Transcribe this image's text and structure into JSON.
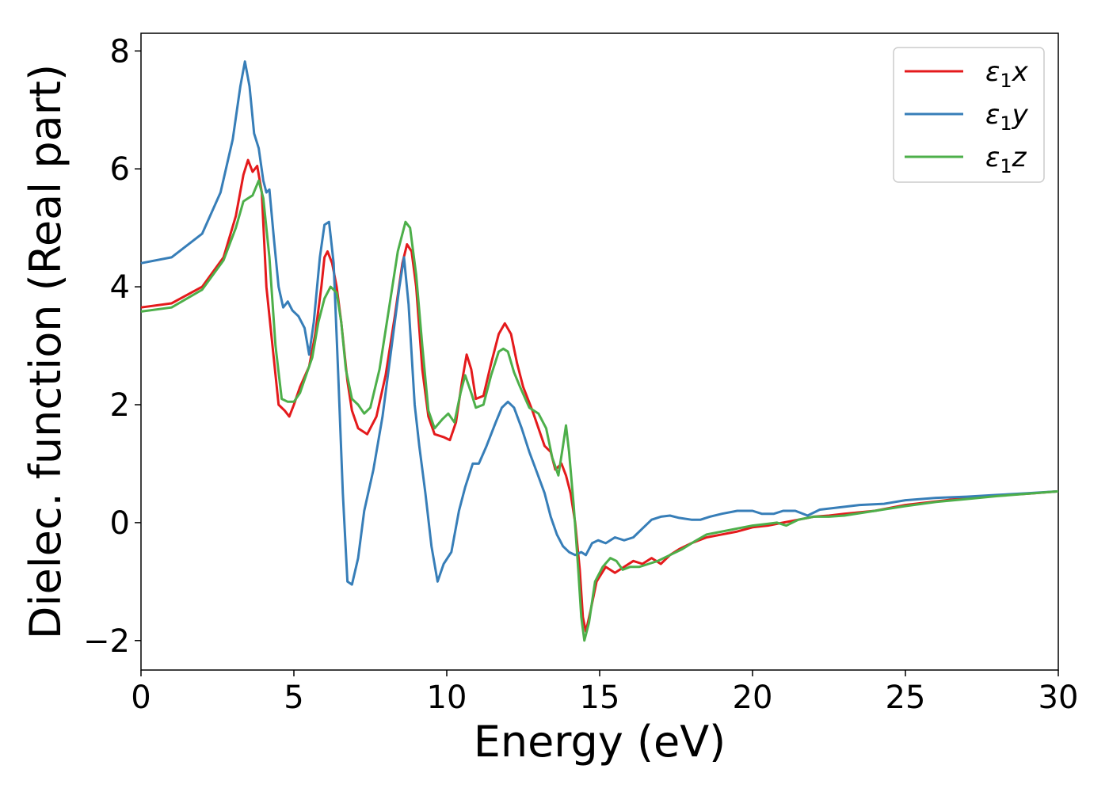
{
  "chart_data": {
    "type": "line",
    "title": "",
    "xlabel": "Energy (eV)",
    "ylabel": "Dielec. function (Real part)",
    "xlim": [
      0,
      30
    ],
    "ylim": [
      -2.5,
      8.3
    ],
    "xticks": [
      0,
      5,
      10,
      15,
      20,
      25,
      30
    ],
    "xtick_labels": [
      "0",
      "5",
      "10",
      "15",
      "20",
      "25",
      "30"
    ],
    "yticks": [
      -2,
      0,
      2,
      4,
      6,
      8
    ],
    "ytick_labels": [
      "−2",
      "0",
      "2",
      "4",
      "6",
      "8"
    ],
    "grid": false,
    "legend_position": "top-right",
    "series": [
      {
        "name": "ε1x",
        "legend_main": "ε",
        "legend_sub": "1",
        "legend_var": "x",
        "color": "#e41a1c",
        "points": [
          [
            0,
            3.65
          ],
          [
            1,
            3.72
          ],
          [
            2,
            4.0
          ],
          [
            2.7,
            4.5
          ],
          [
            3.1,
            5.2
          ],
          [
            3.35,
            5.9
          ],
          [
            3.5,
            6.15
          ],
          [
            3.65,
            5.95
          ],
          [
            3.8,
            6.05
          ],
          [
            3.95,
            5.6
          ],
          [
            4.1,
            4.0
          ],
          [
            4.3,
            3.0
          ],
          [
            4.5,
            2.0
          ],
          [
            4.7,
            1.9
          ],
          [
            4.85,
            1.8
          ],
          [
            5.0,
            2.0
          ],
          [
            5.2,
            2.3
          ],
          [
            5.5,
            2.65
          ],
          [
            5.7,
            3.2
          ],
          [
            5.9,
            4.0
          ],
          [
            6.0,
            4.5
          ],
          [
            6.1,
            4.6
          ],
          [
            6.25,
            4.4
          ],
          [
            6.4,
            4.0
          ],
          [
            6.55,
            3.4
          ],
          [
            6.75,
            2.4
          ],
          [
            6.9,
            1.9
          ],
          [
            7.1,
            1.6
          ],
          [
            7.4,
            1.5
          ],
          [
            7.7,
            1.8
          ],
          [
            8.0,
            2.5
          ],
          [
            8.3,
            3.5
          ],
          [
            8.55,
            4.4
          ],
          [
            8.7,
            4.72
          ],
          [
            8.85,
            4.6
          ],
          [
            9.0,
            4.0
          ],
          [
            9.2,
            2.6
          ],
          [
            9.4,
            1.8
          ],
          [
            9.6,
            1.5
          ],
          [
            9.9,
            1.45
          ],
          [
            10.1,
            1.4
          ],
          [
            10.3,
            1.7
          ],
          [
            10.5,
            2.4
          ],
          [
            10.65,
            2.85
          ],
          [
            10.8,
            2.6
          ],
          [
            10.95,
            2.1
          ],
          [
            11.2,
            2.15
          ],
          [
            11.45,
            2.7
          ],
          [
            11.7,
            3.2
          ],
          [
            11.9,
            3.38
          ],
          [
            12.1,
            3.2
          ],
          [
            12.3,
            2.7
          ],
          [
            12.5,
            2.3
          ],
          [
            12.8,
            1.9
          ],
          [
            13.0,
            1.6
          ],
          [
            13.2,
            1.3
          ],
          [
            13.4,
            1.2
          ],
          [
            13.55,
            0.9
          ],
          [
            13.75,
            1.0
          ],
          [
            13.9,
            0.8
          ],
          [
            14.05,
            0.5
          ],
          [
            14.2,
            0.0
          ],
          [
            14.35,
            -0.8
          ],
          [
            14.45,
            -1.6
          ],
          [
            14.55,
            -1.85
          ],
          [
            14.7,
            -1.5
          ],
          [
            14.9,
            -1.0
          ],
          [
            15.2,
            -0.75
          ],
          [
            15.5,
            -0.85
          ],
          [
            15.8,
            -0.75
          ],
          [
            16.1,
            -0.65
          ],
          [
            16.4,
            -0.7
          ],
          [
            16.7,
            -0.6
          ],
          [
            17.0,
            -0.7
          ],
          [
            17.3,
            -0.55
          ],
          [
            17.6,
            -0.45
          ],
          [
            18.0,
            -0.35
          ],
          [
            18.5,
            -0.25
          ],
          [
            19.0,
            -0.2
          ],
          [
            19.5,
            -0.15
          ],
          [
            20.0,
            -0.08
          ],
          [
            20.5,
            -0.05
          ],
          [
            21.0,
            0.0
          ],
          [
            21.5,
            0.05
          ],
          [
            22.0,
            0.1
          ],
          [
            22.5,
            0.12
          ],
          [
            23.0,
            0.15
          ],
          [
            24.0,
            0.2
          ],
          [
            25.0,
            0.3
          ],
          [
            26.0,
            0.36
          ],
          [
            27.0,
            0.42
          ],
          [
            28.0,
            0.46
          ],
          [
            29.0,
            0.49
          ],
          [
            30.0,
            0.53
          ]
        ]
      },
      {
        "name": "ε1y",
        "legend_main": "ε",
        "legend_sub": "1",
        "legend_var": "y",
        "color": "#377eb8",
        "points": [
          [
            0,
            4.4
          ],
          [
            1,
            4.5
          ],
          [
            2,
            4.9
          ],
          [
            2.6,
            5.6
          ],
          [
            3.0,
            6.5
          ],
          [
            3.25,
            7.4
          ],
          [
            3.4,
            7.82
          ],
          [
            3.55,
            7.4
          ],
          [
            3.7,
            6.6
          ],
          [
            3.85,
            6.35
          ],
          [
            4.0,
            5.8
          ],
          [
            4.1,
            5.6
          ],
          [
            4.2,
            5.65
          ],
          [
            4.35,
            4.8
          ],
          [
            4.5,
            4.0
          ],
          [
            4.65,
            3.65
          ],
          [
            4.8,
            3.75
          ],
          [
            4.95,
            3.6
          ],
          [
            5.15,
            3.5
          ],
          [
            5.35,
            3.3
          ],
          [
            5.5,
            2.85
          ],
          [
            5.65,
            3.4
          ],
          [
            5.85,
            4.5
          ],
          [
            6.0,
            5.05
          ],
          [
            6.15,
            5.1
          ],
          [
            6.3,
            4.4
          ],
          [
            6.45,
            2.5
          ],
          [
            6.6,
            0.5
          ],
          [
            6.75,
            -1.0
          ],
          [
            6.9,
            -1.05
          ],
          [
            7.1,
            -0.6
          ],
          [
            7.3,
            0.2
          ],
          [
            7.6,
            0.9
          ],
          [
            7.9,
            1.8
          ],
          [
            8.2,
            3.0
          ],
          [
            8.45,
            4.0
          ],
          [
            8.6,
            4.5
          ],
          [
            8.75,
            3.7
          ],
          [
            8.95,
            2.0
          ],
          [
            9.1,
            1.3
          ],
          [
            9.3,
            0.5
          ],
          [
            9.5,
            -0.4
          ],
          [
            9.7,
            -1.0
          ],
          [
            9.9,
            -0.7
          ],
          [
            10.15,
            -0.5
          ],
          [
            10.4,
            0.2
          ],
          [
            10.6,
            0.6
          ],
          [
            10.85,
            1.0
          ],
          [
            11.05,
            1.0
          ],
          [
            11.3,
            1.3
          ],
          [
            11.6,
            1.7
          ],
          [
            11.8,
            1.95
          ],
          [
            12.0,
            2.05
          ],
          [
            12.2,
            1.95
          ],
          [
            12.45,
            1.6
          ],
          [
            12.7,
            1.2
          ],
          [
            12.95,
            0.85
          ],
          [
            13.2,
            0.5
          ],
          [
            13.4,
            0.1
          ],
          [
            13.6,
            -0.2
          ],
          [
            13.8,
            -0.4
          ],
          [
            14.0,
            -0.5
          ],
          [
            14.2,
            -0.55
          ],
          [
            14.4,
            -0.5
          ],
          [
            14.55,
            -0.55
          ],
          [
            14.75,
            -0.35
          ],
          [
            14.95,
            -0.3
          ],
          [
            15.2,
            -0.35
          ],
          [
            15.5,
            -0.25
          ],
          [
            15.8,
            -0.3
          ],
          [
            16.1,
            -0.25
          ],
          [
            16.4,
            -0.1
          ],
          [
            16.7,
            0.05
          ],
          [
            17.0,
            0.1
          ],
          [
            17.3,
            0.12
          ],
          [
            17.6,
            0.08
          ],
          [
            18.0,
            0.05
          ],
          [
            18.3,
            0.05
          ],
          [
            18.6,
            0.1
          ],
          [
            19.0,
            0.15
          ],
          [
            19.5,
            0.2
          ],
          [
            20.0,
            0.2
          ],
          [
            20.3,
            0.15
          ],
          [
            20.7,
            0.15
          ],
          [
            21.0,
            0.2
          ],
          [
            21.4,
            0.2
          ],
          [
            21.8,
            0.12
          ],
          [
            22.2,
            0.22
          ],
          [
            22.7,
            0.25
          ],
          [
            23.5,
            0.3
          ],
          [
            24.3,
            0.32
          ],
          [
            25.0,
            0.38
          ],
          [
            26.0,
            0.42
          ],
          [
            27.0,
            0.44
          ],
          [
            28.0,
            0.47
          ],
          [
            29.0,
            0.5
          ],
          [
            30.0,
            0.53
          ]
        ]
      },
      {
        "name": "ε1z",
        "legend_main": "ε",
        "legend_sub": "1",
        "legend_var": "z",
        "color": "#4daf4a",
        "points": [
          [
            0,
            3.58
          ],
          [
            1,
            3.65
          ],
          [
            2,
            3.95
          ],
          [
            2.7,
            4.45
          ],
          [
            3.1,
            5.0
          ],
          [
            3.35,
            5.45
          ],
          [
            3.5,
            5.5
          ],
          [
            3.65,
            5.55
          ],
          [
            3.85,
            5.8
          ],
          [
            4.0,
            5.5
          ],
          [
            4.2,
            4.5
          ],
          [
            4.4,
            3.0
          ],
          [
            4.6,
            2.1
          ],
          [
            4.8,
            2.05
          ],
          [
            5.0,
            2.05
          ],
          [
            5.2,
            2.2
          ],
          [
            5.4,
            2.5
          ],
          [
            5.6,
            2.8
          ],
          [
            5.8,
            3.4
          ],
          [
            6.0,
            3.8
          ],
          [
            6.2,
            4.0
          ],
          [
            6.4,
            3.9
          ],
          [
            6.55,
            3.4
          ],
          [
            6.7,
            2.6
          ],
          [
            6.9,
            2.1
          ],
          [
            7.1,
            2.0
          ],
          [
            7.3,
            1.85
          ],
          [
            7.5,
            1.95
          ],
          [
            7.8,
            2.6
          ],
          [
            8.1,
            3.6
          ],
          [
            8.4,
            4.6
          ],
          [
            8.65,
            5.1
          ],
          [
            8.8,
            5.0
          ],
          [
            9.0,
            4.2
          ],
          [
            9.2,
            3.0
          ],
          [
            9.4,
            1.9
          ],
          [
            9.6,
            1.6
          ],
          [
            9.85,
            1.75
          ],
          [
            10.05,
            1.85
          ],
          [
            10.25,
            1.7
          ],
          [
            10.45,
            2.2
          ],
          [
            10.6,
            2.5
          ],
          [
            10.8,
            2.2
          ],
          [
            10.95,
            1.95
          ],
          [
            11.2,
            2.0
          ],
          [
            11.45,
            2.5
          ],
          [
            11.7,
            2.9
          ],
          [
            11.85,
            2.95
          ],
          [
            12.0,
            2.9
          ],
          [
            12.2,
            2.55
          ],
          [
            12.4,
            2.3
          ],
          [
            12.7,
            1.95
          ],
          [
            13.0,
            1.85
          ],
          [
            13.25,
            1.6
          ],
          [
            13.45,
            1.1
          ],
          [
            13.65,
            0.8
          ],
          [
            13.8,
            1.3
          ],
          [
            13.9,
            1.65
          ],
          [
            14.0,
            1.2
          ],
          [
            14.15,
            0.3
          ],
          [
            14.3,
            -0.8
          ],
          [
            14.4,
            -1.6
          ],
          [
            14.5,
            -2.0
          ],
          [
            14.65,
            -1.7
          ],
          [
            14.85,
            -1.0
          ],
          [
            15.1,
            -0.75
          ],
          [
            15.35,
            -0.6
          ],
          [
            15.55,
            -0.65
          ],
          [
            15.75,
            -0.8
          ],
          [
            16.0,
            -0.75
          ],
          [
            16.3,
            -0.75
          ],
          [
            16.6,
            -0.7
          ],
          [
            16.9,
            -0.65
          ],
          [
            17.3,
            -0.55
          ],
          [
            17.7,
            -0.45
          ],
          [
            18.1,
            -0.32
          ],
          [
            18.5,
            -0.2
          ],
          [
            19.0,
            -0.15
          ],
          [
            19.5,
            -0.1
          ],
          [
            20.0,
            -0.05
          ],
          [
            20.5,
            -0.02
          ],
          [
            20.8,
            0.0
          ],
          [
            21.1,
            -0.05
          ],
          [
            21.5,
            0.05
          ],
          [
            22.0,
            0.1
          ],
          [
            22.5,
            0.1
          ],
          [
            23.0,
            0.12
          ],
          [
            24.0,
            0.2
          ],
          [
            25.0,
            0.28
          ],
          [
            26.0,
            0.35
          ],
          [
            27.0,
            0.4
          ],
          [
            28.0,
            0.45
          ],
          [
            29.0,
            0.49
          ],
          [
            30.0,
            0.53
          ]
        ]
      }
    ]
  }
}
